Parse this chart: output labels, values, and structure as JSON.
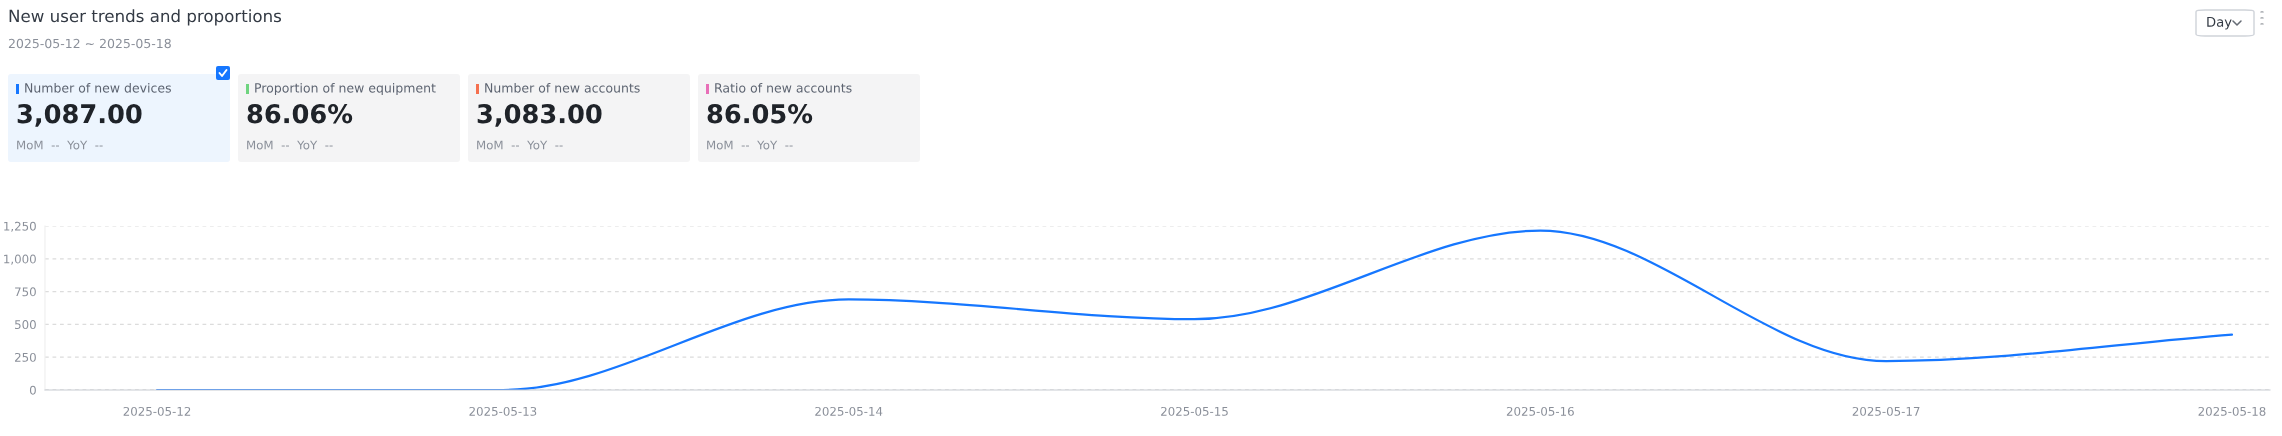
{
  "chart_data": [
    {
      "type": "line",
      "title": "New user trends and proportions",
      "subtitle": "2025-05-12 ~ 2025-05-18",
      "annotations": [
        "Day"
      ],
      "categories": [
        "2025-05-12",
        "2025-05-13",
        "2025-05-14",
        "2025-05-15",
        "2025-05-16",
        "2025-05-17",
        "2025-05-18"
      ],
      "series": [
        {
          "color": "#1677ff",
          "values": [
            0,
            0,
            690,
            540,
            1215,
            220,
            422
          ]
        }
      ],
      "ylim": [
        0,
        1250
      ],
      "yticks": [
        0,
        250,
        500,
        750,
        {
          "value": 1000,
          "label": "1,000"
        },
        {
          "value": 1250,
          "label": "1,250"
        }
      ],
      "grid": "y",
      "marker": "none",
      "line_style": "solid"
    },
    {
      "type": "other",
      "title": "Number of new devices",
      "annotations": [
        "3,087.00",
        "MoM  --  YoY  --"
      ],
      "colors": [
        "#1677ff"
      ]
    },
    {
      "type": "other",
      "title": "Proportion of new equipment",
      "annotations": [
        "86.06%",
        "MoM  --  YoY  --"
      ],
      "colors": [
        "#6fd47f"
      ]
    },
    {
      "type": "other",
      "title": "Number of new accounts",
      "annotations": [
        "3,083.00",
        "MoM  --  YoY  --"
      ],
      "colors": [
        "#f5704f"
      ]
    },
    {
      "type": "other",
      "title": "Ratio of new accounts",
      "annotations": [
        "86.05%",
        "MoM  --  YoY  --"
      ],
      "colors": [
        "#e86fb8"
      ]
    }
  ]
}
